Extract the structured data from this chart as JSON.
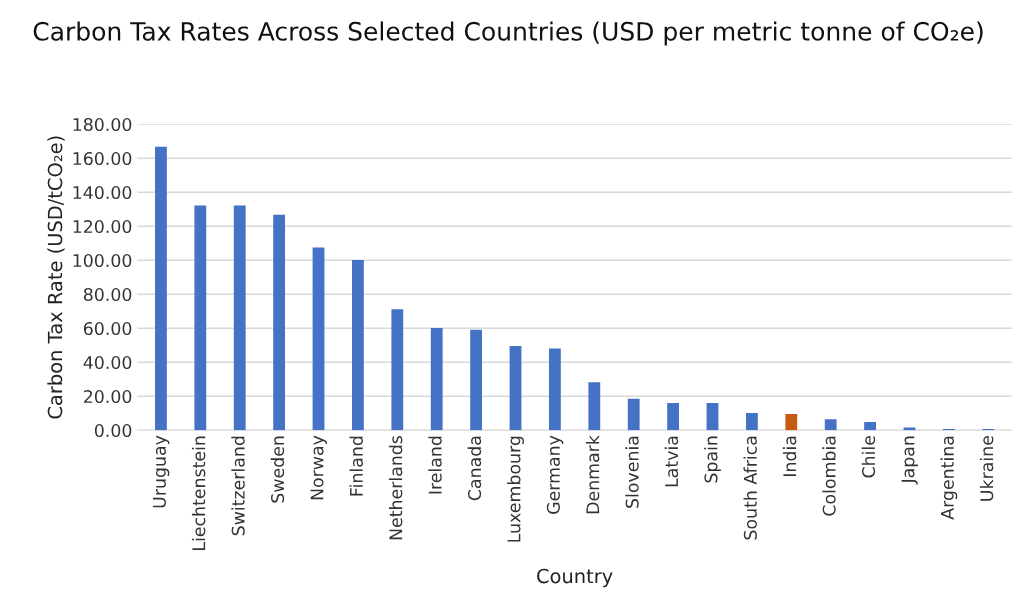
{
  "chart_data": {
    "type": "bar",
    "title": "Carbon Tax Rates Across Selected Countries (USD per metric tonne of CO₂e)",
    "xlabel": "Country",
    "ylabel": "Carbon Tax Rate (USD/tCO₂e)",
    "categories": [
      "Uruguay",
      "Liechtenstein",
      "Switzerland",
      "Sweden",
      "Norway",
      "Finland",
      "Netherlands",
      "Ireland",
      "Canada",
      "Luxembourg",
      "Germany",
      "Denmark",
      "Slovenia",
      "Latvia",
      "Spain",
      "South Africa",
      "India",
      "Colombia",
      "Chile",
      "Japan",
      "Argentina",
      "Ukraine"
    ],
    "values": [
      166.7,
      132.2,
      132.2,
      126.8,
      107.5,
      100.2,
      71.2,
      60.2,
      59.1,
      49.6,
      48.1,
      28.3,
      18.5,
      16.0,
      16.0,
      10.1,
      9.6,
      6.4,
      4.9,
      1.6,
      0.8,
      0.8
    ],
    "colors": [
      "#4472c4",
      "#4472c4",
      "#4472c4",
      "#4472c4",
      "#4472c4",
      "#4472c4",
      "#4472c4",
      "#4472c4",
      "#4472c4",
      "#4472c4",
      "#4472c4",
      "#4472c4",
      "#4472c4",
      "#4472c4",
      "#4472c4",
      "#4472c4",
      "#c55a11",
      "#4472c4",
      "#4472c4",
      "#4472c4",
      "#4472c4",
      "#4472c4"
    ],
    "ylim": [
      0,
      180
    ],
    "yticks": [
      {
        "value": 0,
        "label": "0.00"
      },
      {
        "value": 20,
        "label": "20.00"
      },
      {
        "value": 40,
        "label": "40.00"
      },
      {
        "value": 60,
        "label": "60.00"
      },
      {
        "value": 80,
        "label": "80.00"
      },
      {
        "value": 100,
        "label": "100.00"
      },
      {
        "value": 120,
        "label": "120.00"
      },
      {
        "value": 140,
        "label": "140.00"
      },
      {
        "value": 160,
        "label": "160.00"
      },
      {
        "value": 180,
        "label": "180.00"
      }
    ],
    "grid": "y"
  }
}
